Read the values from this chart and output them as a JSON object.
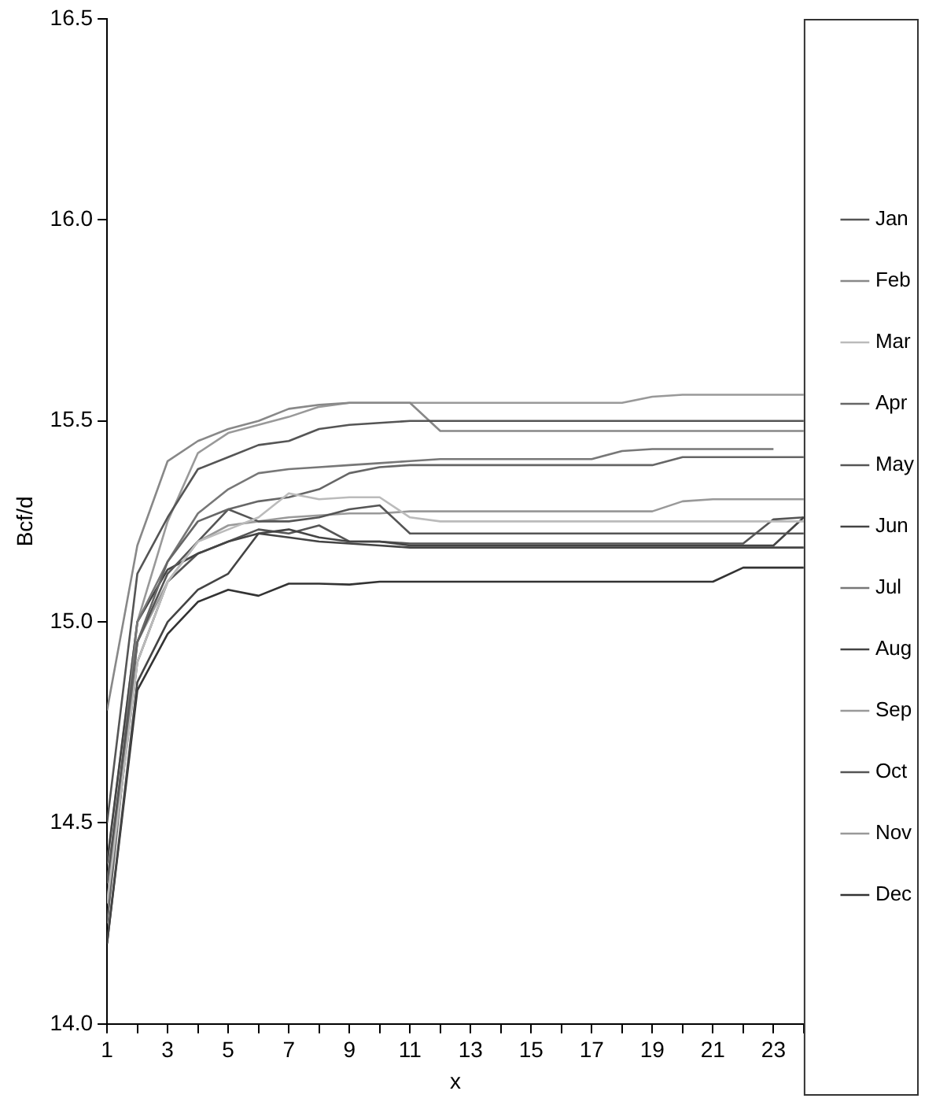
{
  "chart_data": {
    "type": "line",
    "xlabel": "x",
    "ylabel": "Bcf/d",
    "x": [
      1,
      2,
      3,
      4,
      5,
      6,
      7,
      8,
      9,
      10,
      11,
      12,
      13,
      14,
      15,
      16,
      17,
      18,
      19,
      20,
      21,
      22,
      23,
      24
    ],
    "xlim": [
      1,
      24
    ],
    "xticks": [
      1,
      {
        "value": 2,
        "label": null
      },
      3,
      {
        "value": 4,
        "label": null
      },
      5,
      {
        "value": 6,
        "label": null
      },
      7,
      {
        "value": 8,
        "label": null
      },
      9,
      {
        "value": 10,
        "label": null
      },
      11,
      {
        "value": 12,
        "label": null
      },
      13,
      {
        "value": 14,
        "label": null
      },
      15,
      {
        "value": 16,
        "label": null
      },
      17,
      {
        "value": 18,
        "label": null
      },
      19,
      {
        "value": 20,
        "label": null
      },
      21,
      {
        "value": 22,
        "label": null
      },
      23,
      {
        "value": 24,
        "label": null
      }
    ],
    "ylim": [
      14,
      16.5
    ],
    "yticks": [
      {
        "value": 14,
        "label": "14.0"
      },
      14.5,
      {
        "value": 15,
        "label": "15.0"
      },
      15.5,
      {
        "value": 16,
        "label": "16.0"
      },
      16.5
    ],
    "grid": false,
    "legend": "right",
    "marker": "none",
    "line_style": "solid",
    "series": [
      {
        "name": "Jan",
        "color": "#555555",
        "values": [
          14.5,
          15.12,
          15.26,
          15.38,
          15.41,
          15.44,
          15.45,
          15.48,
          15.49,
          15.495,
          15.5,
          15.5,
          15.5,
          15.5,
          15.5,
          15.5,
          15.5,
          15.5,
          15.5,
          15.5,
          15.5,
          15.5,
          15.5,
          15.5
        ]
      },
      {
        "name": "Feb",
        "color": "#888888",
        "values": [
          14.78,
          15.19,
          15.4,
          15.45,
          15.48,
          15.5,
          15.53,
          15.54,
          15.545,
          15.545,
          15.545,
          15.475,
          15.475,
          15.475,
          15.475,
          15.475,
          15.475,
          15.475,
          15.475,
          15.475,
          15.475,
          15.475,
          15.475,
          15.475
        ]
      },
      {
        "name": "Mar",
        "color": "#bbbbbb",
        "values": [
          14.3,
          14.9,
          15.1,
          15.2,
          15.23,
          15.26,
          15.32,
          15.305,
          15.31,
          15.31,
          15.26,
          15.25,
          15.25,
          15.25,
          15.25,
          15.25,
          15.25,
          15.25,
          15.25,
          15.25,
          15.25,
          15.25,
          15.25,
          15.25
        ]
      },
      {
        "name": "Apr",
        "color": "#666666",
        "values": [
          14.25,
          14.95,
          15.15,
          15.25,
          15.28,
          15.3,
          15.31,
          15.33,
          15.37,
          15.385,
          15.39,
          15.39,
          15.39,
          15.39,
          15.39,
          15.39,
          15.39,
          15.39,
          15.39,
          15.41,
          15.41,
          15.41,
          15.41,
          15.41
        ]
      },
      {
        "name": "May",
        "color": "#555555",
        "values": [
          14.35,
          14.95,
          15.12,
          15.2,
          15.28,
          15.25,
          15.25,
          15.26,
          15.28,
          15.29,
          15.22,
          15.22,
          15.22,
          15.22,
          15.22,
          15.22,
          15.22,
          15.22,
          15.22,
          15.22,
          15.22,
          15.22,
          15.22,
          15.22
        ]
      },
      {
        "name": "Jun",
        "color": "#444444",
        "values": [
          14.2,
          14.85,
          15.0,
          15.08,
          15.12,
          15.22,
          15.23,
          15.21,
          15.2,
          15.2,
          15.19,
          15.19,
          15.19,
          15.19,
          15.19,
          15.19,
          15.19,
          15.19,
          15.19,
          15.19,
          15.19,
          15.19,
          15.19,
          15.26
        ]
      },
      {
        "name": "Jul",
        "color": "#777777",
        "values": [
          14.3,
          15.0,
          15.15,
          15.27,
          15.33,
          15.37,
          15.38,
          15.385,
          15.39,
          15.395,
          15.4,
          15.405,
          15.405,
          15.405,
          15.405,
          15.405,
          15.405,
          15.425,
          15.43,
          15.43,
          15.43,
          15.43,
          15.43,
          null
        ]
      },
      {
        "name": "Aug",
        "color": "#444444",
        "values": [
          14.4,
          15.0,
          15.13,
          15.17,
          15.2,
          15.22,
          15.21,
          15.2,
          15.195,
          15.19,
          15.185,
          15.185,
          15.185,
          15.185,
          15.185,
          15.185,
          15.185,
          15.185,
          15.185,
          15.185,
          15.185,
          15.185,
          15.185,
          15.185
        ]
      },
      {
        "name": "Sep",
        "color": "#999999",
        "values": [
          14.35,
          14.95,
          15.1,
          15.2,
          15.24,
          15.25,
          15.26,
          15.265,
          15.27,
          15.27,
          15.275,
          15.275,
          15.275,
          15.275,
          15.275,
          15.275,
          15.275,
          15.275,
          15.275,
          15.3,
          15.305,
          15.305,
          15.305,
          15.305
        ]
      },
      {
        "name": "Oct",
        "color": "#555555",
        "values": [
          14.3,
          14.9,
          15.1,
          15.17,
          15.2,
          15.23,
          15.22,
          15.24,
          15.2,
          15.2,
          15.195,
          15.195,
          15.195,
          15.195,
          15.195,
          15.195,
          15.195,
          15.195,
          15.195,
          15.195,
          15.195,
          15.195,
          15.255,
          15.26
        ]
      },
      {
        "name": "Nov",
        "color": "#999999",
        "values": [
          14.4,
          15.0,
          15.25,
          15.42,
          15.47,
          15.49,
          15.51,
          15.535,
          15.545,
          15.545,
          15.545,
          15.545,
          15.545,
          15.545,
          15.545,
          15.545,
          15.545,
          15.545,
          15.56,
          15.565,
          15.565,
          15.565,
          15.565,
          15.565
        ]
      },
      {
        "name": "Dec",
        "color": "#333333",
        "values": [
          14.2,
          14.83,
          14.97,
          15.05,
          15.08,
          15.065,
          15.095,
          15.095,
          15.093,
          15.1,
          15.1,
          15.1,
          15.1,
          15.1,
          15.1,
          15.1,
          15.1,
          15.1,
          15.1,
          15.1,
          15.1,
          15.135,
          15.135,
          15.135
        ]
      }
    ]
  }
}
